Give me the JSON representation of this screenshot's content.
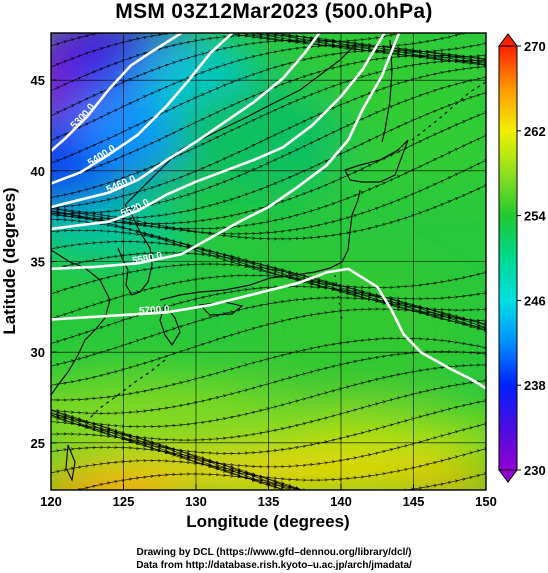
{
  "title": "MSM 03Z12Mar2023 (500.0hPa)",
  "axes": {
    "xlabel": "Longitude (degrees)",
    "ylabel": "Latitude  (degrees)",
    "xlim": [
      120,
      150
    ],
    "ylim": [
      22.4,
      47.6
    ],
    "xticks": [
      120,
      125,
      130,
      135,
      140,
      145,
      150
    ],
    "yticks": [
      25,
      30,
      35,
      40,
      45
    ]
  },
  "colorbar": {
    "min": 230,
    "max": 270,
    "ticks": [
      230,
      238,
      246,
      254,
      262,
      270
    ],
    "colormap": "rainbow"
  },
  "contours": [
    {
      "label": "5300.0",
      "points": [
        [
          120,
          41.1
        ],
        [
          121,
          41.8
        ],
        [
          122.5,
          43
        ],
        [
          124,
          44.5
        ],
        [
          125.5,
          45.8
        ],
        [
          127,
          46.6
        ],
        [
          129,
          47.6
        ]
      ]
    },
    {
      "label": "5400.0",
      "points": [
        [
          120,
          39.3
        ],
        [
          122,
          39.9
        ],
        [
          124,
          40.9
        ],
        [
          126,
          42
        ],
        [
          128,
          43.6
        ],
        [
          129.5,
          45
        ],
        [
          131,
          46.5
        ],
        [
          132.5,
          47.6
        ]
      ]
    },
    {
      "label": "5460.0",
      "points": [
        [
          120,
          38
        ],
        [
          122,
          38.4
        ],
        [
          124,
          38.8
        ],
        [
          126,
          39.5
        ],
        [
          128,
          40.6
        ],
        [
          130,
          41.6
        ],
        [
          132,
          42.7
        ],
        [
          134,
          43.8
        ],
        [
          136,
          45.1
        ],
        [
          137.5,
          46.5
        ],
        [
          138.5,
          47.6
        ]
      ]
    },
    {
      "label": "5520.0",
      "points": [
        [
          120,
          36.8
        ],
        [
          122,
          37
        ],
        [
          124,
          37.2
        ],
        [
          126,
          37.8
        ],
        [
          128,
          38.7
        ],
        [
          130,
          39.4
        ],
        [
          132,
          40
        ],
        [
          134,
          40.6
        ],
        [
          136,
          41.3
        ],
        [
          138,
          42.5
        ],
        [
          140,
          44.1
        ],
        [
          141.5,
          45.6
        ],
        [
          143,
          47.6
        ]
      ]
    },
    {
      "label": "5580.0",
      "points": [
        [
          120,
          34.6
        ],
        [
          123,
          34.7
        ],
        [
          126,
          34.9
        ],
        [
          129,
          35.4
        ],
        [
          131,
          36.3
        ],
        [
          133,
          37.2
        ],
        [
          135,
          38
        ],
        [
          137,
          39.1
        ],
        [
          139,
          40.3
        ],
        [
          140.5,
          41.7
        ],
        [
          141.5,
          43.4
        ],
        [
          142.8,
          45.2
        ],
        [
          144,
          47.6
        ]
      ]
    },
    {
      "label": "5700.0",
      "points": [
        [
          120,
          31.8
        ],
        [
          124,
          32
        ],
        [
          128,
          32.2
        ],
        [
          131,
          32.6
        ],
        [
          134,
          33.2
        ],
        [
          137,
          33.8
        ],
        [
          139,
          34.4
        ],
        [
          140.5,
          34.6
        ],
        [
          141.5,
          34.1
        ],
        [
          142.5,
          33.6
        ],
        [
          143.5,
          32.3
        ],
        [
          144.3,
          31
        ],
        [
          145.5,
          30
        ],
        [
          147.5,
          29.1
        ],
        [
          149,
          28.5
        ],
        [
          150,
          28
        ]
      ]
    }
  ],
  "streamlines": {
    "direction": "westerly",
    "max_speed_region": [
      30,
      36
    ]
  },
  "credits": {
    "line1": "Drawing by DCL (https://www.gfd–dennou.org/library/dcl/)",
    "line2": "Data from http://database.rish.kyoto–u.ac.jp/arch/jmadata/"
  }
}
